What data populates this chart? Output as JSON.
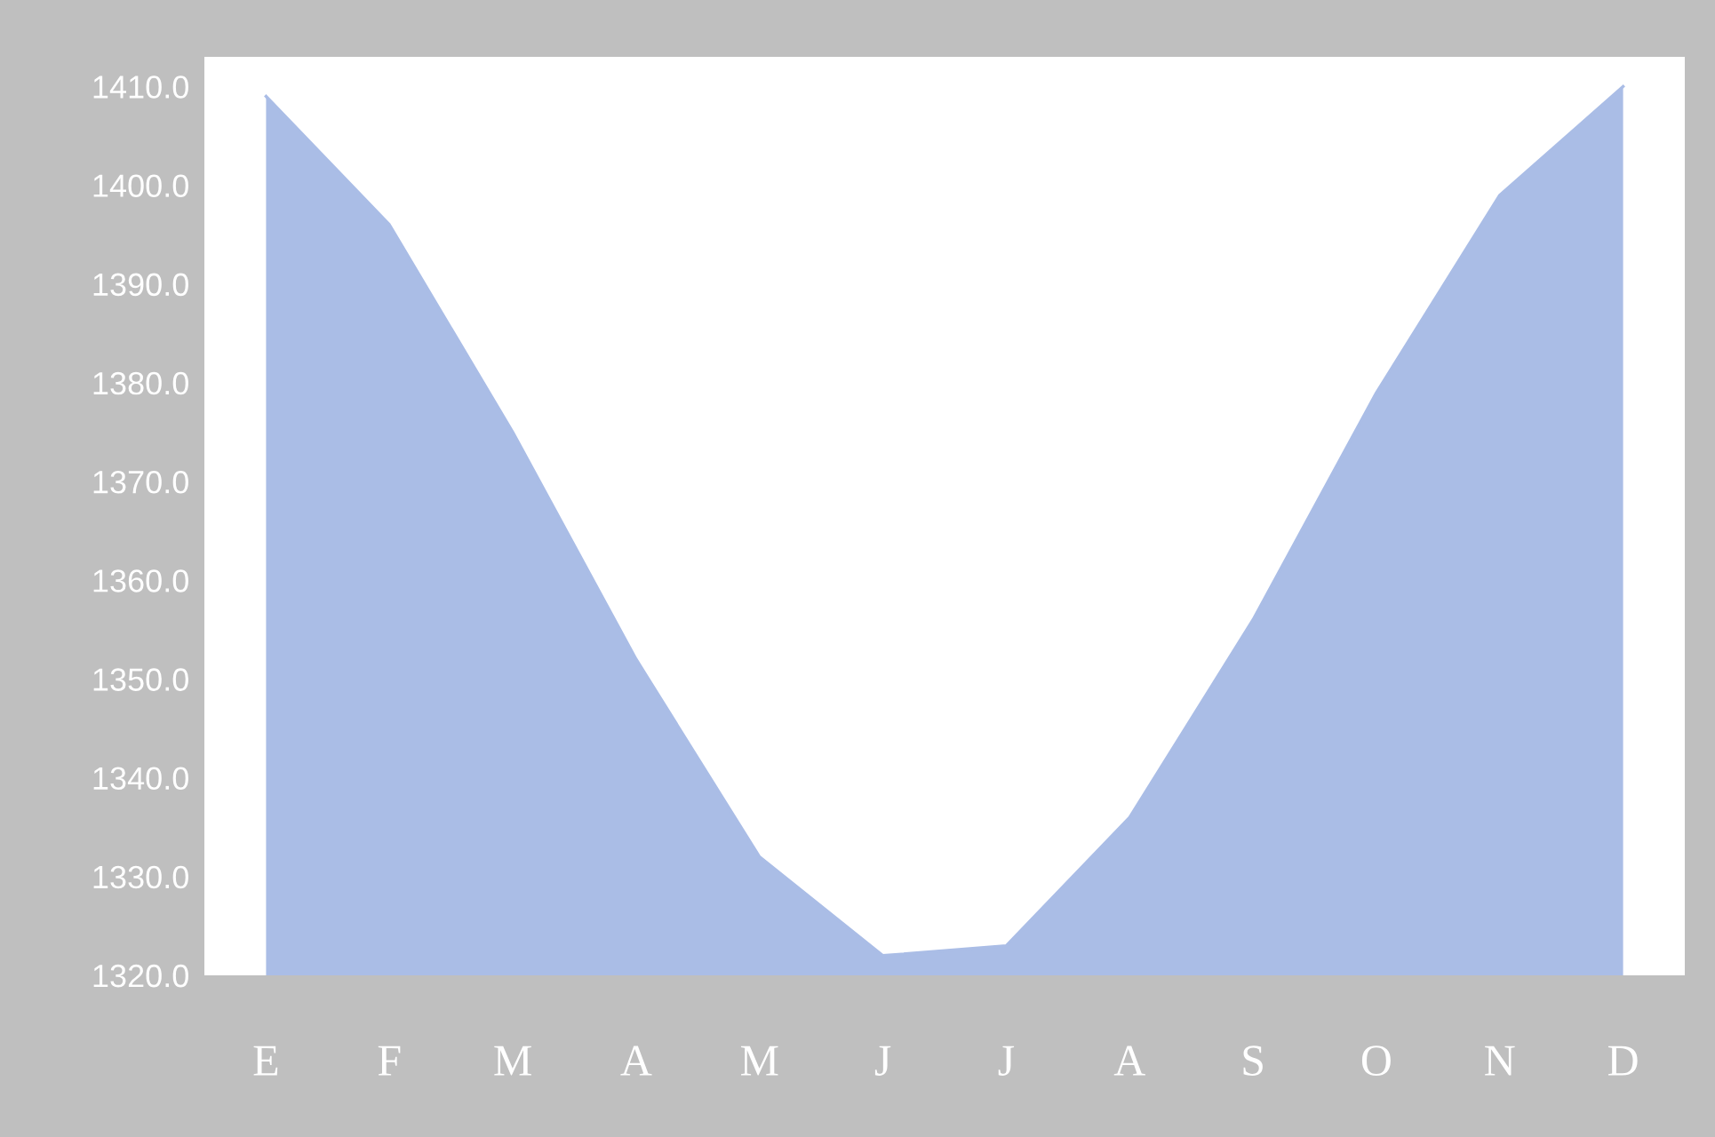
{
  "chart_data": {
    "type": "area",
    "categories": [
      "E",
      "F",
      "M",
      "A",
      "M",
      "J",
      "J",
      "A",
      "S",
      "O",
      "N",
      "D"
    ],
    "series": [
      {
        "color": "#aabde6",
        "values": [
          1409,
          1396,
          1375,
          1352,
          1332,
          1322,
          1323,
          1336,
          1356,
          1379,
          1399,
          1410
        ]
      }
    ],
    "ylim": [
      1320,
      1413
    ],
    "yticks": [
      {
        "value": 1320,
        "label": "1320.0"
      },
      {
        "value": 1330,
        "label": "1330.0"
      },
      {
        "value": 1340,
        "label": "1340.0"
      },
      {
        "value": 1350,
        "label": "1350.0"
      },
      {
        "value": 1360,
        "label": "1360.0"
      },
      {
        "value": 1370,
        "label": "1370.0"
      },
      {
        "value": 1380,
        "label": "1380.0"
      },
      {
        "value": 1390,
        "label": "1390.0"
      },
      {
        "value": 1400,
        "label": "1400.0"
      },
      {
        "value": 1410,
        "label": "1410.0"
      }
    ],
    "grid": false,
    "legend": false
  }
}
